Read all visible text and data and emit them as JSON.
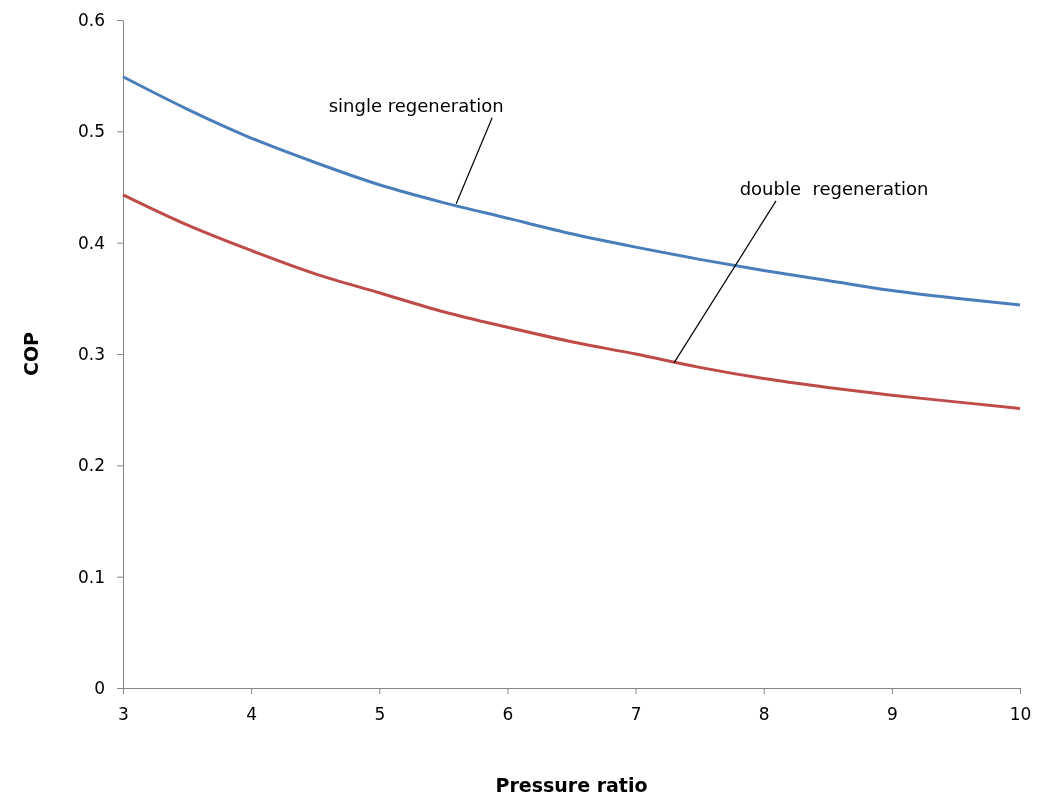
{
  "chart_data": {
    "type": "line",
    "xlabel": "Pressure ratio",
    "ylabel": "COP",
    "x": [
      3,
      3.5,
      4,
      4.5,
      5,
      5.5,
      6,
      6.5,
      7,
      7.5,
      8,
      8.5,
      9,
      9.5,
      10
    ],
    "series": [
      {
        "color": "#4a7ebb",
        "values": [
          0.549,
          0.52,
          0.494,
          0.472,
          0.452,
          0.436,
          0.422,
          0.408,
          0.396,
          0.385,
          0.375,
          0.366,
          0.357,
          0.35,
          0.344
        ]
      },
      {
        "color": "#be4b48",
        "values": [
          0.443,
          0.416,
          0.393,
          0.372,
          0.355,
          0.338,
          0.324,
          0.311,
          0.3,
          0.288,
          0.278,
          0.27,
          0.263,
          0.257,
          0.251
        ]
      }
    ],
    "annotations": [
      {
        "text": "single regeneration",
        "x": 5.6,
        "y": 0.435
      },
      {
        "text": "double  regeneration",
        "x": 7.3,
        "y": 0.292
      }
    ],
    "xlim": [
      3,
      10
    ],
    "xticks": [
      3,
      4,
      5,
      6,
      7,
      8,
      9,
      10
    ],
    "ylim": [
      0,
      0.6
    ],
    "yticks": [
      0,
      0.1,
      0.2,
      0.3,
      0.4,
      0.5,
      0.6
    ],
    "grid": false,
    "marker": "none",
    "line_style": "solid"
  }
}
